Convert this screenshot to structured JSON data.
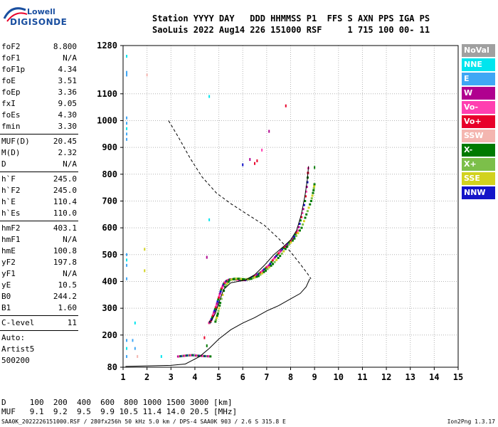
{
  "logo": {
    "top": "Lowell",
    "bottom": "DIGISONDE"
  },
  "header": {
    "line1": "Station YYYY DAY   DDD HHMMSS P1  FFS S AXN PPS IGA PS",
    "line2": "SaoLuis 2022 Aug14 226 151000 RSF     1 715 100 00- 11"
  },
  "params": {
    "group1": [
      {
        "k": "foF2",
        "v": "8.800"
      },
      {
        "k": "foF1",
        "v": "N/A"
      },
      {
        "k": "foF1p",
        "v": "4.34"
      },
      {
        "k": "foE",
        "v": "3.51"
      },
      {
        "k": "foEp",
        "v": "3.36"
      },
      {
        "k": "fxI",
        "v": "9.05"
      },
      {
        "k": "foEs",
        "v": "4.30"
      },
      {
        "k": "fmin",
        "v": "3.30"
      }
    ],
    "group2": [
      {
        "k": "MUF(D)",
        "v": "20.45"
      },
      {
        "k": "M(D)",
        "v": "2.32"
      },
      {
        "k": "D",
        "v": "N/A"
      }
    ],
    "group3": [
      {
        "k": "h`F",
        "v": "245.0"
      },
      {
        "k": "h`F2",
        "v": "245.0"
      },
      {
        "k": "h`E",
        "v": "110.4"
      },
      {
        "k": "h`Es",
        "v": "110.0"
      }
    ],
    "group4": [
      {
        "k": "hmF2",
        "v": "403.1"
      },
      {
        "k": "hmF1",
        "v": "N/A"
      },
      {
        "k": "hmE",
        "v": "100.8"
      },
      {
        "k": "yF2",
        "v": "197.8"
      },
      {
        "k": "yF1",
        "v": "N/A"
      },
      {
        "k": "yE",
        "v": "10.5"
      },
      {
        "k": "B0",
        "v": "244.2"
      },
      {
        "k": "B1",
        "v": "1.60"
      }
    ],
    "group5": [
      {
        "k": "C-level",
        "v": "11"
      }
    ],
    "group6": [
      {
        "k": "Auto:",
        "v": ""
      },
      {
        "k": "Artist5",
        "v": ""
      },
      {
        "k": "500200",
        "v": ""
      }
    ]
  },
  "legend": [
    {
      "label": "NoVal",
      "color": "#a0a0a0"
    },
    {
      "label": "NNE",
      "color": "#00e5ee"
    },
    {
      "label": "E",
      "color": "#3fa7f5"
    },
    {
      "label": "W",
      "color": "#b0008f"
    },
    {
      "label": "Vo-",
      "color": "#ff3fb0"
    },
    {
      "label": "Vo+",
      "color": "#e8002a"
    },
    {
      "label": "SSW",
      "color": "#f4b6b0"
    },
    {
      "label": "X-",
      "color": "#007a00"
    },
    {
      "label": "X+",
      "color": "#7cbf4a"
    },
    {
      "label": "SSE",
      "color": "#d2d21e"
    },
    {
      "label": "NNW",
      "color": "#1414c8"
    }
  ],
  "bottom": {
    "line1": "D     100  200  400  600  800 1000 1500 3000 [km]",
    "line2": "MUF   9.1  9.2  9.5  9.9 10.5 11.4 14.0 20.5 [MHz]"
  },
  "footer": {
    "left": "SAA0K_2022226151000.RSF / 280fx256h 50 kHz 5.0 km / DPS-4 SAA0K 903 / 2.6 S 315.8 E",
    "right": "Ion2Png 1.3.17"
  },
  "chart_data": {
    "type": "scatter",
    "xlim": [
      1,
      15
    ],
    "ylim": [
      80,
      1280
    ],
    "x_ticks": [
      "1",
      "2",
      "3",
      "4",
      "5",
      "6",
      "7",
      "8",
      "9",
      "10",
      "11",
      "12",
      "13",
      "14",
      "15"
    ],
    "y_ticks": [
      "80",
      "200",
      "300",
      "400",
      "500",
      "600",
      "700",
      "800",
      "900",
      "1000",
      "1100",
      "1280"
    ],
    "y_tick_values": [
      80,
      200,
      300,
      400,
      500,
      600,
      700,
      800,
      900,
      1000,
      1100,
      1280
    ],
    "series": [
      {
        "type": "line",
        "style": "solid",
        "x": [
          4.6,
          4.7,
          4.85,
          5.0,
          5.2,
          5.5,
          5.8,
          6.1,
          6.5,
          6.9,
          7.3,
          7.7,
          8.0,
          8.25,
          8.45,
          8.6,
          8.7,
          8.75
        ],
        "y": [
          250,
          255,
          280,
          320,
          370,
          395,
          400,
          405,
          425,
          460,
          500,
          530,
          555,
          590,
          650,
          720,
          780,
          830
        ]
      },
      {
        "type": "line",
        "style": "solid",
        "x": [
          1.1,
          2.0,
          3.0,
          3.6,
          4.2,
          4.6,
          5.0,
          5.5,
          6.0,
          6.5,
          7.0,
          7.5,
          8.0,
          8.4,
          8.65,
          8.8
        ],
        "y": [
          83,
          85,
          87,
          92,
          120,
          150,
          185,
          220,
          245,
          265,
          290,
          310,
          335,
          355,
          380,
          410
        ]
      },
      {
        "type": "line",
        "style": "dashed",
        "x": [
          2.9,
          3.3,
          3.8,
          4.3,
          4.9,
          5.5,
          6.2,
          6.9,
          7.5,
          8.0,
          8.4,
          8.7,
          8.85
        ],
        "y": [
          1000,
          940,
          860,
          790,
          730,
          690,
          650,
          610,
          560,
          510,
          465,
          430,
          410
        ]
      }
    ],
    "echoes": [
      {
        "x": 1.15,
        "y": 1180,
        "c": "#3fa7f5"
      },
      {
        "x": 1.15,
        "y": 1170,
        "c": "#3fa7f5"
      },
      {
        "x": 1.15,
        "y": 1240,
        "c": "#00e5ee"
      },
      {
        "x": 1.15,
        "y": 1010,
        "c": "#3fa7f5"
      },
      {
        "x": 1.15,
        "y": 990,
        "c": "#3fa7f5"
      },
      {
        "x": 1.15,
        "y": 970,
        "c": "#00e5ee"
      },
      {
        "x": 1.15,
        "y": 950,
        "c": "#3fa7f5"
      },
      {
        "x": 1.15,
        "y": 930,
        "c": "#3fa7f5"
      },
      {
        "x": 1.15,
        "y": 500,
        "c": "#3fa7f5"
      },
      {
        "x": 1.15,
        "y": 480,
        "c": "#00e5ee"
      },
      {
        "x": 1.15,
        "y": 460,
        "c": "#3fa7f5"
      },
      {
        "x": 1.15,
        "y": 410,
        "c": "#3fa7f5"
      },
      {
        "x": 1.15,
        "y": 180,
        "c": "#3fa7f5"
      },
      {
        "x": 1.15,
        "y": 150,
        "c": "#00e5ee"
      },
      {
        "x": 1.15,
        "y": 120,
        "c": "#3fa7f5"
      },
      {
        "x": 1.5,
        "y": 245,
        "c": "#00e5ee"
      },
      {
        "x": 1.5,
        "y": 150,
        "c": "#3fa7f5"
      },
      {
        "x": 1.4,
        "y": 180,
        "c": "#3fa7f5"
      },
      {
        "x": 1.9,
        "y": 520,
        "c": "#d2d21e"
      },
      {
        "x": 1.9,
        "y": 440,
        "c": "#d2d21e"
      },
      {
        "x": 2.0,
        "y": 1170,
        "c": "#f4b6b0"
      },
      {
        "x": 1.6,
        "y": 120,
        "c": "#f4b6b0"
      },
      {
        "x": 4.6,
        "y": 1090,
        "c": "#00e5ee"
      },
      {
        "x": 4.6,
        "y": 630,
        "c": "#00e5ee"
      },
      {
        "x": 4.5,
        "y": 490,
        "c": "#b0008f"
      },
      {
        "x": 4.4,
        "y": 190,
        "c": "#e8002a"
      },
      {
        "x": 4.5,
        "y": 160,
        "c": "#007a00"
      },
      {
        "x": 6.0,
        "y": 835,
        "c": "#1414c8"
      },
      {
        "x": 6.3,
        "y": 855,
        "c": "#b0008f"
      },
      {
        "x": 6.5,
        "y": 840,
        "c": "#e8002a"
      },
      {
        "x": 6.6,
        "y": 850,
        "c": "#e8002a"
      },
      {
        "x": 6.8,
        "y": 890,
        "c": "#ff3fb0"
      },
      {
        "x": 7.1,
        "y": 960,
        "c": "#b0008f"
      },
      {
        "x": 7.8,
        "y": 1055,
        "c": "#e8002a"
      },
      {
        "x": 9.0,
        "y": 825,
        "c": "#007a00"
      },
      {
        "x": 2.6,
        "y": 120,
        "c": "#00e5ee"
      }
    ],
    "trace_o": {
      "x": [
        4.6,
        4.65,
        4.7,
        4.8,
        4.9,
        5.0,
        5.1,
        5.2,
        5.3,
        5.4,
        5.5,
        5.7,
        5.9,
        6.1,
        6.3,
        6.5,
        6.7,
        6.9,
        7.1,
        7.3,
        7.5,
        7.7,
        7.9,
        8.1,
        8.3,
        8.45,
        8.6,
        8.7,
        8.75
      ],
      "y": [
        245,
        250,
        260,
        285,
        310,
        340,
        370,
        390,
        400,
        405,
        408,
        408,
        405,
        405,
        410,
        420,
        430,
        445,
        460,
        485,
        505,
        525,
        540,
        560,
        590,
        640,
        700,
        770,
        840
      ]
    },
    "trace_x": {
      "x": [
        4.8,
        4.9,
        5.0,
        5.2,
        5.4,
        5.6,
        5.8,
        6.0,
        6.3,
        6.6,
        6.9,
        7.2,
        7.5,
        7.8,
        8.1,
        8.4,
        8.6,
        8.8,
        8.9,
        8.95
      ],
      "y": [
        250,
        280,
        320,
        380,
        405,
        410,
        410,
        408,
        410,
        420,
        440,
        465,
        495,
        530,
        560,
        600,
        650,
        700,
        740,
        770
      ]
    },
    "trace_low": {
      "x": [
        3.3,
        3.5,
        3.7,
        3.9,
        4.1,
        4.3,
        4.5,
        4.7
      ],
      "y": [
        120,
        122,
        124,
        125,
        123,
        122,
        121,
        120
      ]
    }
  }
}
